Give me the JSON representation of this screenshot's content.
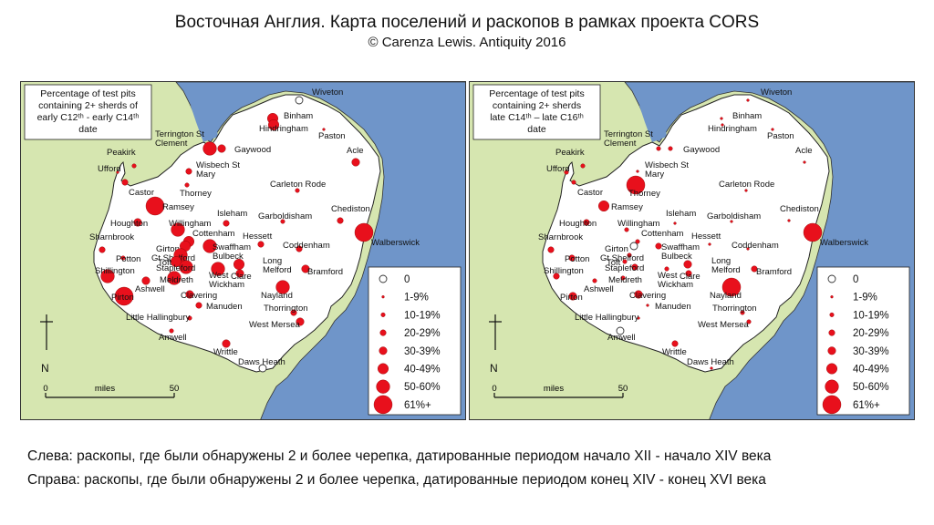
{
  "title": "Восточная Англия. Карта поселений и раскопов в рамках проекта CORS",
  "subtitle": "© Carenza Lewis. Antiquity 2016",
  "colors": {
    "sea": "#6f95c9",
    "land_outside": "#d6e6b0",
    "region": "#ffffff",
    "dot": "#e8101c",
    "dot_stroke": "#8b0000"
  },
  "maps": [
    {
      "id": "left",
      "legend_box": [
        "Percentage of test pits",
        "containing 2+ sherds of",
        "early C12ᵗʰ - early C14ᵗʰ",
        "date"
      ],
      "sites": [
        {
          "name": "Wiveton",
          "cat": 0
        },
        {
          "name": "Binham",
          "cat": 5
        },
        {
          "name": "Hindringham",
          "cat": 5
        },
        {
          "name": "Paston",
          "cat": 1
        },
        {
          "name": "Terrington St Clement",
          "cat": 6
        },
        {
          "name": "Gaywood",
          "cat": 4
        },
        {
          "name": "Peakirk",
          "cat": 2
        },
        {
          "name": "Wisbech St Mary",
          "cat": 3
        },
        {
          "name": "Acle",
          "cat": 4
        },
        {
          "name": "Ufford",
          "cat": 1
        },
        {
          "name": "Castor",
          "cat": 3
        },
        {
          "name": "Thorney",
          "cat": 2
        },
        {
          "name": "Carleton Rode",
          "cat": 2
        },
        {
          "name": "Ramsey",
          "cat": 7
        },
        {
          "name": "Isleham",
          "cat": 3
        },
        {
          "name": "Garboldisham",
          "cat": 2
        },
        {
          "name": "Chediston",
          "cat": 3
        },
        {
          "name": "Walberswick",
          "cat": 7
        },
        {
          "name": "Houghton",
          "cat": 4
        },
        {
          "name": "Willingham",
          "cat": 6
        },
        {
          "name": "Hessett",
          "cat": 3
        },
        {
          "name": "Cottenham",
          "cat": 5
        },
        {
          "name": "Girton",
          "cat": 5
        },
        {
          "name": "Swaffham Bulbeck",
          "cat": 6
        },
        {
          "name": "Coddenham",
          "cat": 3
        },
        {
          "name": "Sharnbrook",
          "cat": 3
        },
        {
          "name": "Gt Shelford",
          "cat": 6
        },
        {
          "name": "Potton",
          "cat": 2
        },
        {
          "name": "Toft",
          "cat": 5
        },
        {
          "name": "Stapleford",
          "cat": 6
        },
        {
          "name": "Long Melford",
          "cat": 5
        },
        {
          "name": "Bramford",
          "cat": 4
        },
        {
          "name": "West Wickham",
          "cat": 6
        },
        {
          "name": "Clare",
          "cat": 4
        },
        {
          "name": "Shillington",
          "cat": 6
        },
        {
          "name": "Ashwell",
          "cat": 4
        },
        {
          "name": "Meldreth",
          "cat": 6
        },
        {
          "name": "Nayland",
          "cat": 6
        },
        {
          "name": "Pirton",
          "cat": 7
        },
        {
          "name": "Clavering",
          "cat": 4
        },
        {
          "name": "Manuden",
          "cat": 3
        },
        {
          "name": "Thorrington",
          "cat": 3
        },
        {
          "name": "Little Hallingbury",
          "cat": 2
        },
        {
          "name": "West Mersea",
          "cat": 4
        },
        {
          "name": "Amwell",
          "cat": 2
        },
        {
          "name": "Writtle",
          "cat": 4
        },
        {
          "name": "Daws Heath",
          "cat": 0
        }
      ]
    },
    {
      "id": "right",
      "legend_box": [
        "Percentage of test pits",
        "containing 2+ sherds",
        "late C14ᵗʰ – late C16ᵗʰ",
        "date"
      ],
      "sites": [
        {
          "name": "Wiveton",
          "cat": 1
        },
        {
          "name": "Binham",
          "cat": 1
        },
        {
          "name": "Hindringham",
          "cat": 1
        },
        {
          "name": "Paston",
          "cat": 1
        },
        {
          "name": "Terrington St Clement",
          "cat": 2
        },
        {
          "name": "Gaywood",
          "cat": 2
        },
        {
          "name": "Peakirk",
          "cat": 2
        },
        {
          "name": "Wisbech St Mary",
          "cat": 1
        },
        {
          "name": "Acle",
          "cat": 1
        },
        {
          "name": "Ufford",
          "cat": 2
        },
        {
          "name": "Castor",
          "cat": 2
        },
        {
          "name": "Thorney",
          "cat": 7
        },
        {
          "name": "Carleton Rode",
          "cat": 1
        },
        {
          "name": "Ramsey",
          "cat": 5
        },
        {
          "name": "Isleham",
          "cat": 1
        },
        {
          "name": "Garboldisham",
          "cat": 1
        },
        {
          "name": "Chediston",
          "cat": 1
        },
        {
          "name": "Walberswick",
          "cat": 7
        },
        {
          "name": "Houghton",
          "cat": 3
        },
        {
          "name": "Willingham",
          "cat": 2
        },
        {
          "name": "Hessett",
          "cat": 1
        },
        {
          "name": "Cottenham",
          "cat": 2
        },
        {
          "name": "Girton",
          "cat": 0
        },
        {
          "name": "Swaffham Bulbeck",
          "cat": 3
        },
        {
          "name": "Coddenham",
          "cat": 1
        },
        {
          "name": "Sharnbrook",
          "cat": 3
        },
        {
          "name": "Gt Shelford",
          "cat": 2
        },
        {
          "name": "Potton",
          "cat": 3
        },
        {
          "name": "Toft",
          "cat": 2
        },
        {
          "name": "Stapleford",
          "cat": 3
        },
        {
          "name": "Long Melford",
          "cat": 4
        },
        {
          "name": "Bramford",
          "cat": 3
        },
        {
          "name": "West Wickham",
          "cat": 2
        },
        {
          "name": "Clare",
          "cat": 3
        },
        {
          "name": "Shillington",
          "cat": 3
        },
        {
          "name": "Ashwell",
          "cat": 2
        },
        {
          "name": "Meldreth",
          "cat": 2
        },
        {
          "name": "Nayland",
          "cat": 7
        },
        {
          "name": "Pirton",
          "cat": 4
        },
        {
          "name": "Clavering",
          "cat": 4
        },
        {
          "name": "Manuden",
          "cat": 1
        },
        {
          "name": "Thorrington",
          "cat": 2
        },
        {
          "name": "Little Hallingbury",
          "cat": 1
        },
        {
          "name": "West Mersea",
          "cat": 2
        },
        {
          "name": "Amwell",
          "cat": 0
        },
        {
          "name": "Writtle",
          "cat": 3
        },
        {
          "name": "Daws Heath",
          "cat": 1
        }
      ]
    }
  ],
  "legend": [
    "0",
    "1-9%",
    "10-19%",
    "20-29%",
    "30-39%",
    "40-49%",
    "50-60%",
    "61%+"
  ],
  "north_label": "N",
  "scale": {
    "start": "0",
    "label": "miles",
    "end": "50"
  },
  "captions": [
    "Слева: раскопы, где были обнаружены 2 и более черепка, датированные периодом начало XII - начало XIV века",
    "Справа: раскопы, где были обнаружены 2 и более черепка, датированные периодом конец XIV - конец XVI века"
  ]
}
